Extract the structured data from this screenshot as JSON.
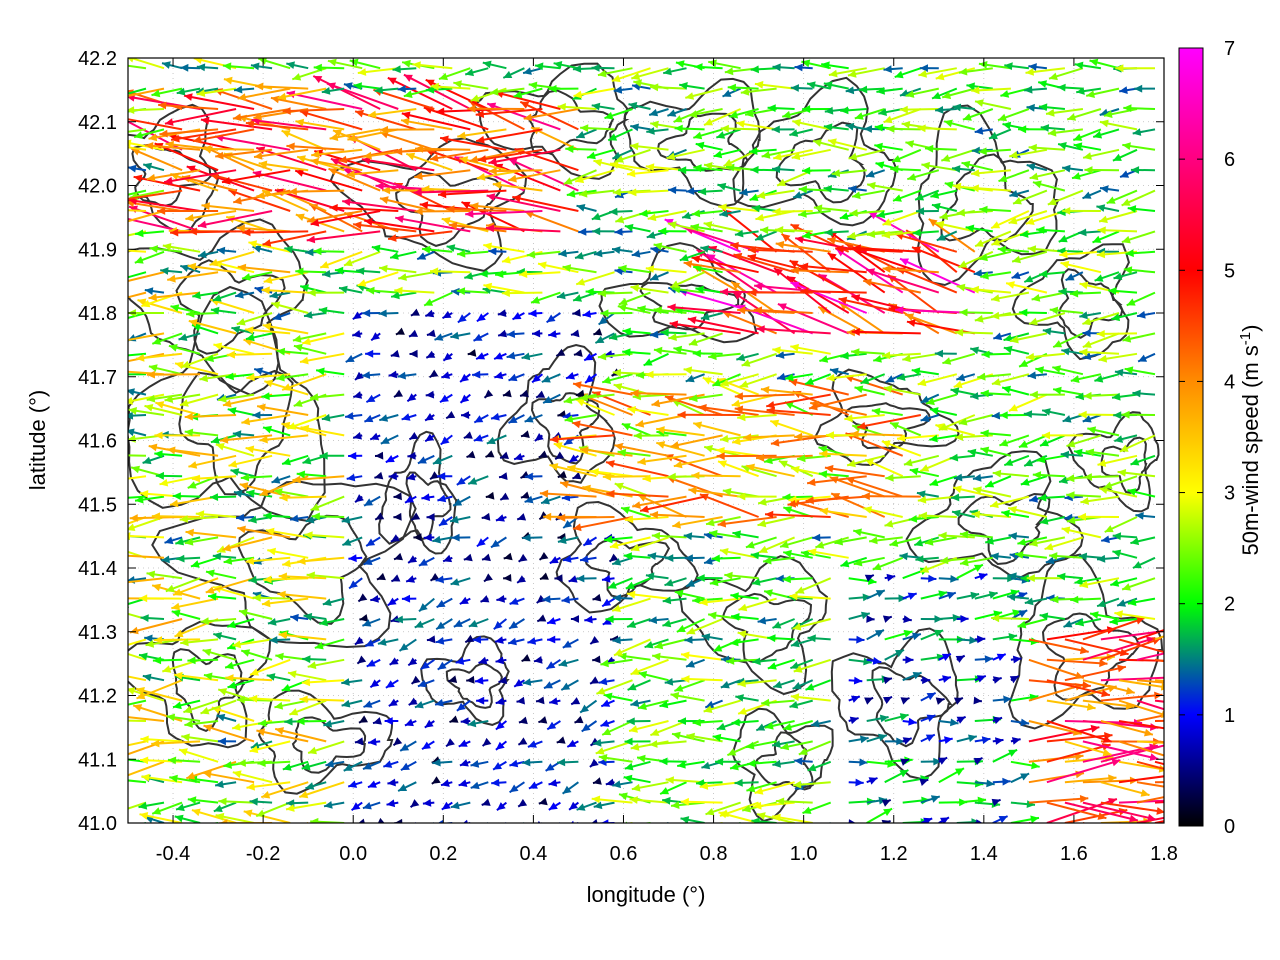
{
  "chart_data": {
    "type": "vector-field",
    "title": "",
    "xlabel": "longitude (°)",
    "ylabel": "latitude (°)",
    "xlim": [
      -0.5,
      1.8
    ],
    "ylim": [
      41.0,
      42.2
    ],
    "x_ticks": [
      "-0.4",
      "-0.2",
      "0.0",
      "0.2",
      "0.4",
      "0.6",
      "0.8",
      "1.0",
      "1.2",
      "1.4",
      "1.6",
      "1.8"
    ],
    "y_ticks": [
      "41.0",
      "41.1",
      "41.2",
      "41.3",
      "41.4",
      "41.5",
      "41.6",
      "41.7",
      "41.8",
      "41.9",
      "42.0",
      "42.1",
      "42.2"
    ],
    "grid": "dotted",
    "colorbar": {
      "label": "50m-wind speed (m s",
      "label_sup": "-1",
      "label_end": ")",
      "range": [
        0,
        7
      ],
      "ticks": [
        "0",
        "1",
        "2",
        "3",
        "4",
        "5",
        "6",
        "7"
      ],
      "colors": [
        "#000000",
        "#0000ff",
        "#00ff00",
        "#ffff00",
        "#ff8c00",
        "#ff0000",
        "#ff00ff"
      ]
    },
    "wind_regions": [
      {
        "lon": [
          -0.5,
          0.1
        ],
        "lat": [
          41.0,
          42.2
        ],
        "speed": [
          1.5,
          4.5
        ],
        "dir_deg": 182
      },
      {
        "lon": [
          0.0,
          0.6
        ],
        "lat": [
          41.0,
          41.8
        ],
        "speed": [
          0.2,
          1.8
        ],
        "dir_deg": 200
      },
      {
        "lon": [
          0.5,
          1.3
        ],
        "lat": [
          41.45,
          41.7
        ],
        "speed": [
          2.5,
          5.5
        ],
        "dir_deg": 175
      },
      {
        "lon": [
          0.85,
          1.4
        ],
        "lat": [
          41.75,
          41.9
        ],
        "speed": [
          4.5,
          7.0
        ],
        "dir_deg": 160
      },
      {
        "lon": [
          1.3,
          1.8
        ],
        "lat": [
          41.0,
          41.3
        ],
        "speed": [
          4.0,
          6.5
        ],
        "dir_deg": 0
      },
      {
        "lon": [
          1.1,
          1.5
        ],
        "lat": [
          41.0,
          41.4
        ],
        "speed": [
          0.5,
          2.5
        ],
        "dir_deg": 10
      },
      {
        "lon": [
          -0.4,
          0.5
        ],
        "lat": [
          41.9,
          42.15
        ],
        "speed": [
          4.0,
          6.5
        ],
        "dir_deg": 172
      }
    ]
  }
}
